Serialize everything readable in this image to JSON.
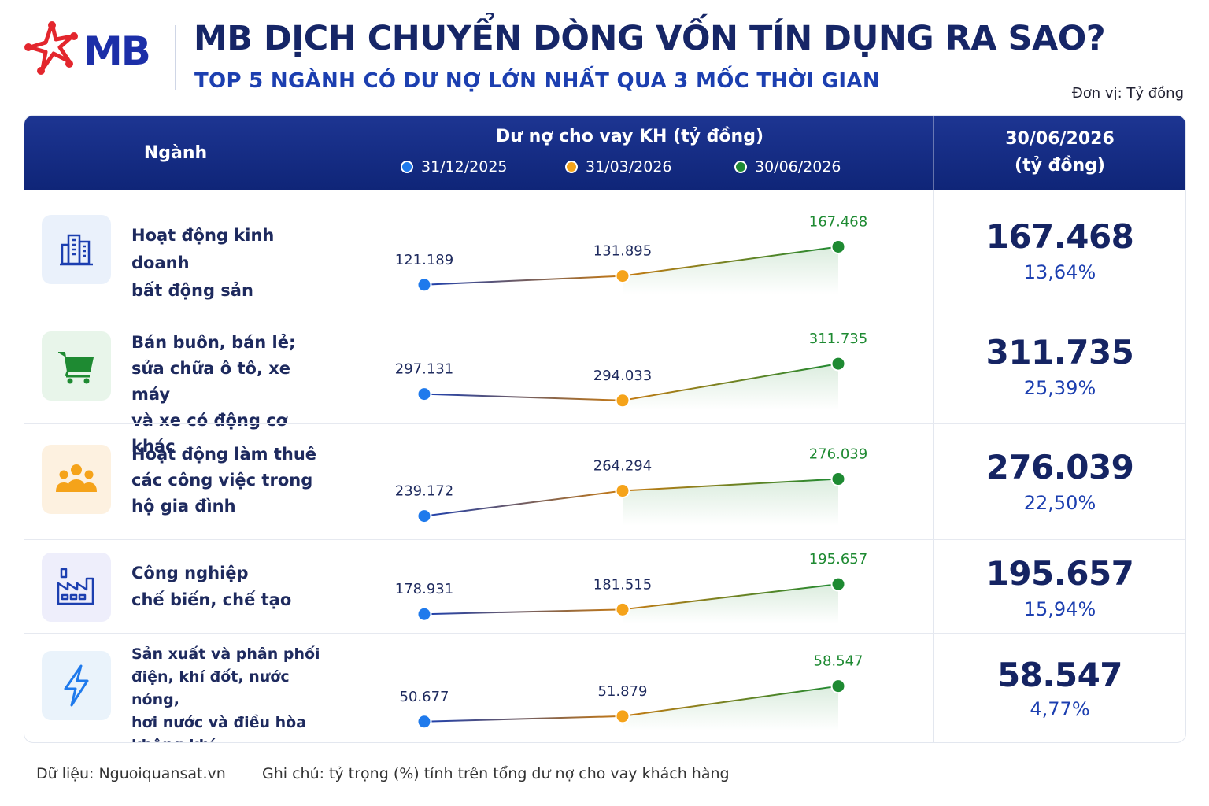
{
  "header": {
    "logo_text": "MB",
    "title": "MB DỊCH CHUYỂN DÒNG VỐN TÍN DỤNG RA SAO?",
    "subtitle": "TOP 5 NGÀNH CÓ DƯ NỢ LỚN NHẤT QUA 3 MỐC THỜI GIAN",
    "unit": "Đơn vị: Tỷ đồng"
  },
  "table_header": {
    "sector": "Ngành",
    "chart_title": "Dư nợ cho vay KH (tỷ đồng)",
    "value_line1": "30/06/2026",
    "value_line2": "(tỷ đồng)"
  },
  "colors": {
    "brand_red": "#e3262d",
    "brand_blue": "#1c2fa8",
    "period1": "#1f7aec",
    "period2": "#f5a31a",
    "period3": "#1e8a32"
  },
  "chart_data": {
    "type": "line",
    "periods": [
      "31/12/2025",
      "31/03/2026",
      "30/06/2026"
    ],
    "series": [
      {
        "sector": "Hoạt động kinh doanh bất động sản",
        "sector_lines": [
          "Hoạt động kinh doanh",
          "bất động sản"
        ],
        "icon": "building-icon",
        "values": [
          121189,
          131895,
          167468
        ],
        "labels": [
          "121.189",
          "131.895",
          "167.468"
        ],
        "latest": "167.468",
        "share": "13,64%"
      },
      {
        "sector": "Bán buôn, bán lẻ; sửa chữa ô tô, xe máy và xe có động cơ khác",
        "sector_lines": [
          "Bán buôn, bán lẻ;",
          "sửa chữa ô tô, xe máy",
          "và xe có động cơ khác"
        ],
        "icon": "cart-icon",
        "values": [
          297131,
          294033,
          311735
        ],
        "labels": [
          "297.131",
          "294.033",
          "311.735"
        ],
        "latest": "311.735",
        "share": "25,39%"
      },
      {
        "sector": "Hoạt động làm thuê các công việc trong hộ gia đình",
        "sector_lines": [
          "Hoạt động làm thuê",
          "các công việc trong",
          "hộ gia đình"
        ],
        "icon": "people-icon",
        "values": [
          239172,
          264294,
          276039
        ],
        "labels": [
          "239.172",
          "264.294",
          "276.039"
        ],
        "latest": "276.039",
        "share": "22,50%"
      },
      {
        "sector": "Công nghiệp chế biến, chế tạo",
        "sector_lines": [
          "Công nghiệp",
          "chế biến, chế tạo"
        ],
        "icon": "factory-icon",
        "values": [
          178931,
          181515,
          195657
        ],
        "labels": [
          "178.931",
          "181.515",
          "195.657"
        ],
        "latest": "195.657",
        "share": "15,94%"
      },
      {
        "sector": "Sản xuất và phân phối điện, khí đốt, nước nóng, hơi nước và điều hòa không khí",
        "sector_lines": [
          "Sản xuất và phân phối",
          "điện, khí đốt, nước nóng,",
          "hơi nước và điều hòa",
          "không khí"
        ],
        "icon": "lightning-icon",
        "values": [
          50677,
          51879,
          58547
        ],
        "labels": [
          "50.677",
          "51.879",
          "58.547"
        ],
        "latest": "58.547",
        "share": "4,77%"
      }
    ]
  },
  "footer": {
    "source": "Dữ liệu: Nguoiquansat.vn",
    "note": "Ghi chú: tỷ trọng (%) tính trên tổng dư nợ cho vay khách hàng"
  }
}
